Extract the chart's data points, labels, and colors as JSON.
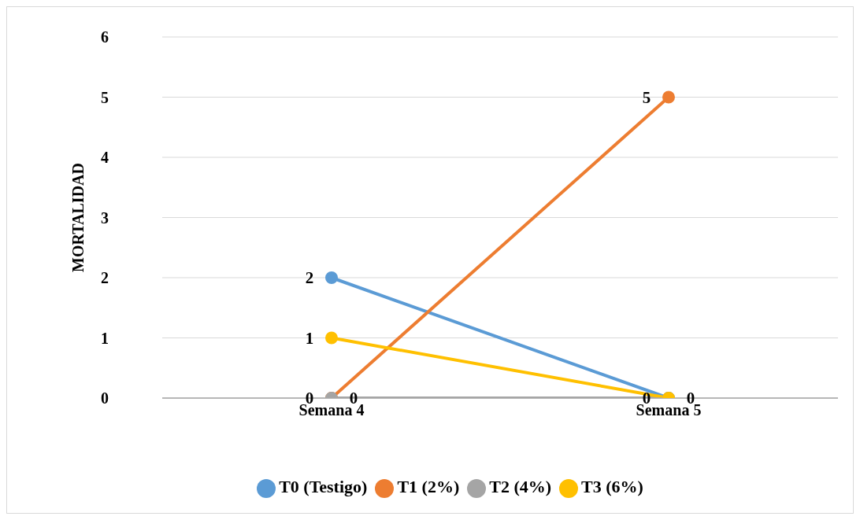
{
  "chart_data": {
    "type": "line",
    "ylabel": "MORTALIDAD",
    "categories": [
      "Semana 4",
      "Semana 5"
    ],
    "series": [
      {
        "name": "T0 (Testigo)",
        "color": "#5b9bd5",
        "values": [
          2,
          0
        ],
        "value_labels": [
          "2",
          null
        ]
      },
      {
        "name": "T1 (2%)",
        "color": "#ed7d31",
        "values": [
          0,
          5
        ],
        "value_labels": [
          "0",
          "5"
        ]
      },
      {
        "name": "T2 (4%)",
        "color": "#a5a5a5",
        "values": [
          0,
          0
        ],
        "value_labels": [
          "0",
          "0"
        ]
      },
      {
        "name": "T3 (6%)",
        "color": "#ffc000",
        "values": [
          1,
          0
        ],
        "value_labels": [
          "1",
          "0"
        ]
      }
    ],
    "ylim": [
      0,
      6
    ],
    "yticks": [
      0,
      1,
      2,
      3,
      4,
      5,
      6
    ],
    "grid": "y",
    "legend": "bottom",
    "marker": "circle",
    "line_style": "solid"
  }
}
